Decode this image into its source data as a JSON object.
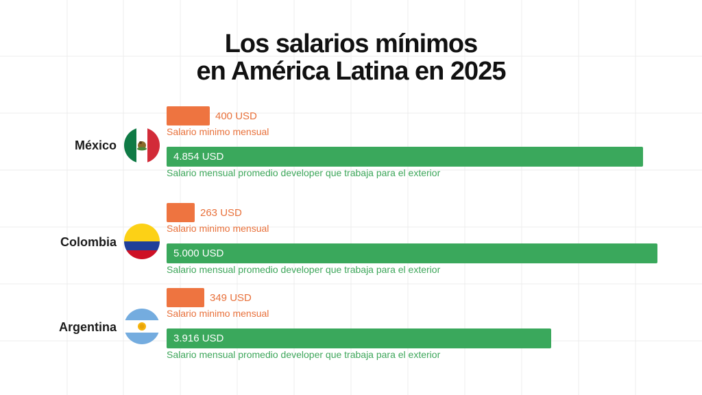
{
  "title_line1": "Los salarios mínimos",
  "title_line2": "en América Latina en 2025",
  "colors": {
    "minimum": "#ee7440",
    "developer": "#3aa85c",
    "grid": "#ececec"
  },
  "chart_data": {
    "type": "bar",
    "orientation": "horizontal",
    "title": "Los salarios mínimos en América Latina en 2025",
    "categories": [
      "México",
      "Colombia",
      "Argentina"
    ],
    "series": [
      {
        "name": "Salario minimo mensual",
        "values": [
          400,
          263,
          349
        ],
        "labels": [
          "400 USD",
          "263 USD",
          "349 USD"
        ]
      },
      {
        "name": "Salario mensual promedio developer que trabaja para el exterior",
        "values": [
          4854,
          5000,
          3916
        ],
        "labels": [
          "4.854 USD",
          "5.000 USD",
          "3.916 USD"
        ]
      }
    ],
    "flags": [
      "mexico-flag-icon",
      "colombia-flag-icon",
      "argentina-flag-icon"
    ],
    "grid": true,
    "legend": "none"
  }
}
